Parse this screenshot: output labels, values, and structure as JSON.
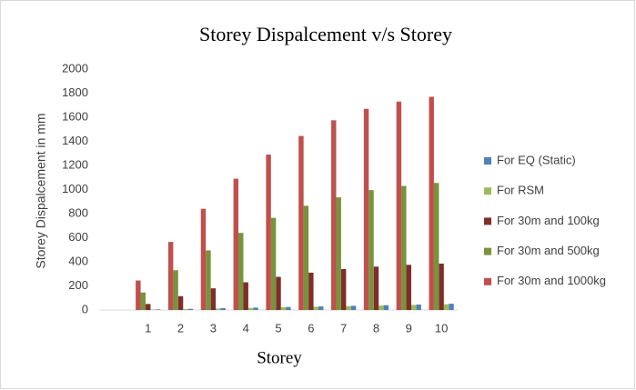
{
  "chart_data": {
    "type": "bar",
    "title": "Storey Dispalcement  v/s Storey",
    "x_label": "Storey",
    "y_label": "Storey Dispalcement in mm",
    "categories": [
      null,
      "1",
      "2",
      "3",
      "4",
      "5",
      "6",
      "7",
      "8",
      "9",
      "10"
    ],
    "series": [
      {
        "name": "For EQ (Static)",
        "color": "#4f81bd",
        "values": [
          null,
          5,
          10,
          15,
          20,
          25,
          30,
          35,
          40,
          45,
          52
        ]
      },
      {
        "name": "For RSM",
        "color": "#9bbb59",
        "values": [
          null,
          4,
          8,
          12,
          17,
          22,
          27,
          32,
          37,
          42,
          47
        ]
      },
      {
        "name": "For 30m and 100kg",
        "color": "#7f2d2b",
        "values": [
          null,
          50,
          115,
          180,
          230,
          275,
          310,
          340,
          360,
          375,
          385
        ]
      },
      {
        "name": "For 30m and 500kg",
        "color": "#77933c",
        "values": [
          null,
          145,
          330,
          495,
          640,
          765,
          865,
          935,
          995,
          1030,
          1055
        ]
      },
      {
        "name": "For 30m and 1000kg",
        "color": "#c0504d",
        "values": [
          null,
          245,
          565,
          840,
          1090,
          1290,
          1445,
          1575,
          1670,
          1730,
          1770
        ]
      }
    ],
    "ylim": [
      0,
      2000
    ],
    "yticks": [
      0,
      200,
      400,
      600,
      800,
      1000,
      1200,
      1400,
      1600,
      1800,
      2000
    ],
    "grid": false,
    "legend": "right"
  }
}
